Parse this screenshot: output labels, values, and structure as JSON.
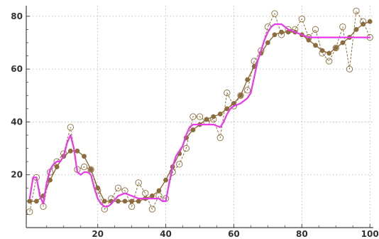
{
  "chart_data": {
    "type": "line",
    "title": "",
    "xlabel": "",
    "ylabel": "",
    "xlim": [
      -1,
      101
    ],
    "ylim": [
      0,
      84
    ],
    "grid": true,
    "legend": "none",
    "x_ticks": [
      20,
      40,
      60,
      80,
      100
    ],
    "y_ticks": [
      20,
      40,
      60,
      80
    ],
    "x_tick_labels": [
      "20",
      "40",
      "60",
      "80",
      "100"
    ],
    "y_tick_labels": [
      "20",
      "40",
      "60",
      "80"
    ],
    "colors": {
      "raw": "#8c6c3c",
      "smoothed": "#8c6c3c",
      "fitted": "#e83ae8",
      "grid": "#b0b0b0",
      "axis": "#444444"
    },
    "series": [
      {
        "style": "open-markers-dashed",
        "x": [
          0,
          2,
          4,
          6,
          8,
          10,
          12,
          14,
          16,
          18,
          20,
          22,
          24,
          26,
          28,
          30,
          32,
          34,
          36,
          38,
          40,
          42,
          44,
          46,
          48,
          50,
          52,
          54,
          56,
          58,
          60,
          62,
          64,
          66,
          68,
          70,
          72,
          74,
          76,
          78,
          80,
          82,
          84,
          86,
          88,
          90,
          92,
          94,
          96,
          98,
          100
        ],
        "y": [
          6,
          19,
          8,
          21,
          25,
          28,
          38,
          22,
          23,
          22,
          14,
          7,
          11,
          15,
          14,
          8,
          17,
          13,
          7,
          12,
          11,
          21,
          24,
          30,
          42,
          42,
          40,
          41,
          34,
          51,
          46,
          50,
          52,
          63,
          67,
          76,
          81,
          73,
          75,
          75,
          79,
          72,
          75,
          66,
          63,
          68,
          76,
          60,
          82,
          78,
          72
        ]
      },
      {
        "style": "filled-markers-solid",
        "x": [
          0,
          2,
          4,
          6,
          8,
          10,
          12,
          14,
          16,
          18,
          20,
          22,
          24,
          26,
          28,
          30,
          32,
          34,
          36,
          38,
          40,
          42,
          44,
          46,
          48,
          50,
          52,
          54,
          56,
          58,
          60,
          62,
          64,
          66,
          68,
          70,
          72,
          74,
          76,
          78,
          80,
          82,
          84,
          86,
          88,
          90,
          92,
          94,
          96,
          98,
          100
        ],
        "y": [
          10,
          10,
          12,
          18,
          23,
          27,
          29,
          29,
          27,
          22,
          15,
          10,
          10,
          10,
          10,
          10,
          10,
          11,
          12,
          14,
          18,
          23,
          28,
          34,
          37,
          39,
          41,
          42,
          43,
          45,
          47,
          50,
          56,
          61,
          66,
          70,
          73,
          74,
          74,
          74,
          73,
          71,
          69,
          67,
          66,
          68,
          70,
          72,
          75,
          77,
          78
        ]
      },
      {
        "style": "solid-line",
        "x": [
          0,
          1,
          2,
          3,
          4,
          5,
          6,
          7,
          8,
          9,
          10,
          11,
          12,
          13,
          14,
          15,
          16,
          17,
          18,
          19,
          20,
          21,
          22,
          23,
          24,
          26,
          28,
          30,
          32,
          34,
          36,
          38,
          39,
          40,
          41,
          42,
          43,
          44,
          45,
          46,
          47,
          48,
          50,
          52,
          54,
          56,
          57,
          58,
          59,
          60,
          62,
          64,
          65,
          66,
          67,
          68,
          69,
          70,
          71,
          72,
          74,
          76,
          78,
          80,
          82,
          84,
          86,
          88,
          90,
          92,
          94,
          96,
          98,
          100
        ],
        "y": [
          11,
          19,
          19,
          12,
          9,
          17,
          22,
          24,
          25,
          25,
          27,
          32,
          35,
          30,
          21,
          20,
          21,
          21,
          20,
          15,
          11,
          9,
          8,
          8,
          9,
          12,
          13,
          12,
          11,
          11,
          11,
          11,
          10,
          10,
          17,
          23,
          27,
          29,
          31,
          35,
          38,
          39,
          39,
          39,
          39,
          38,
          40,
          43,
          45,
          46,
          47,
          49,
          51,
          57,
          63,
          67,
          71,
          74,
          76,
          77,
          77,
          75,
          74,
          73,
          72,
          72,
          72,
          72,
          72,
          72,
          72,
          72,
          72,
          72
        ]
      }
    ]
  }
}
